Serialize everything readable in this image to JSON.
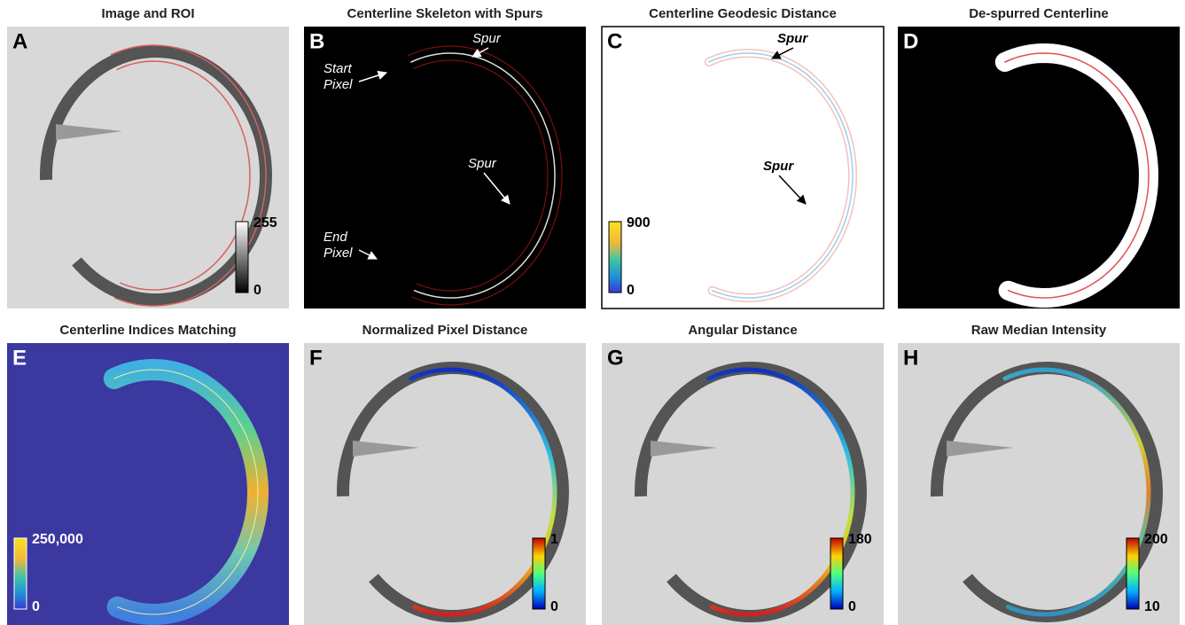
{
  "panels": [
    {
      "letter": "A",
      "title": "Image and ROI",
      "colorbar": {
        "max": "255",
        "min": "0"
      }
    },
    {
      "letter": "B",
      "title": "Centerline Skeleton with Spurs",
      "annotations": [
        {
          "lines": [
            "Spur"
          ]
        },
        {
          "lines": [
            "Start",
            "Pixel"
          ]
        },
        {
          "lines": [
            "Spur"
          ]
        },
        {
          "lines": [
            "End",
            "Pixel"
          ]
        }
      ]
    },
    {
      "letter": "C",
      "title": "Centerline Geodesic Distance",
      "annotations": [
        {
          "lines": [
            "Spur"
          ]
        },
        {
          "lines": [
            "Spur"
          ]
        }
      ],
      "colorbar": {
        "max": "900",
        "min": "0"
      }
    },
    {
      "letter": "D",
      "title": "De-spurred Centerline"
    },
    {
      "letter": "E",
      "title": "Centerline Indices Matching",
      "colorbar": {
        "max": "250,000",
        "min": "0"
      }
    },
    {
      "letter": "F",
      "title": "Normalized Pixel Distance",
      "colorbar": {
        "max": "1",
        "min": "0"
      }
    },
    {
      "letter": "G",
      "title": "Angular Distance",
      "colorbar": {
        "max": "180",
        "min": "0"
      }
    },
    {
      "letter": "H",
      "title": "Raw Median Intensity",
      "colorbar": {
        "max": "200",
        "min": "10"
      }
    }
  ]
}
